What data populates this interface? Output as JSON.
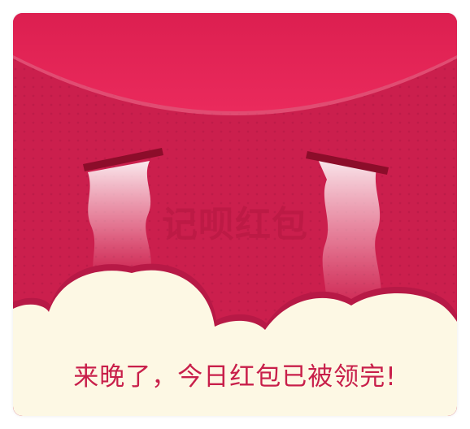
{
  "envelope": {
    "watermark": "记呗红包",
    "message": "来晚了，今日红包已被领完!"
  },
  "colors": {
    "envelope_body": "#cb1f4d",
    "flap": "#e42456",
    "cloud": "#fdf8e4",
    "eyebrow": "#8c0d2a",
    "message_text": "#c81f4a"
  }
}
